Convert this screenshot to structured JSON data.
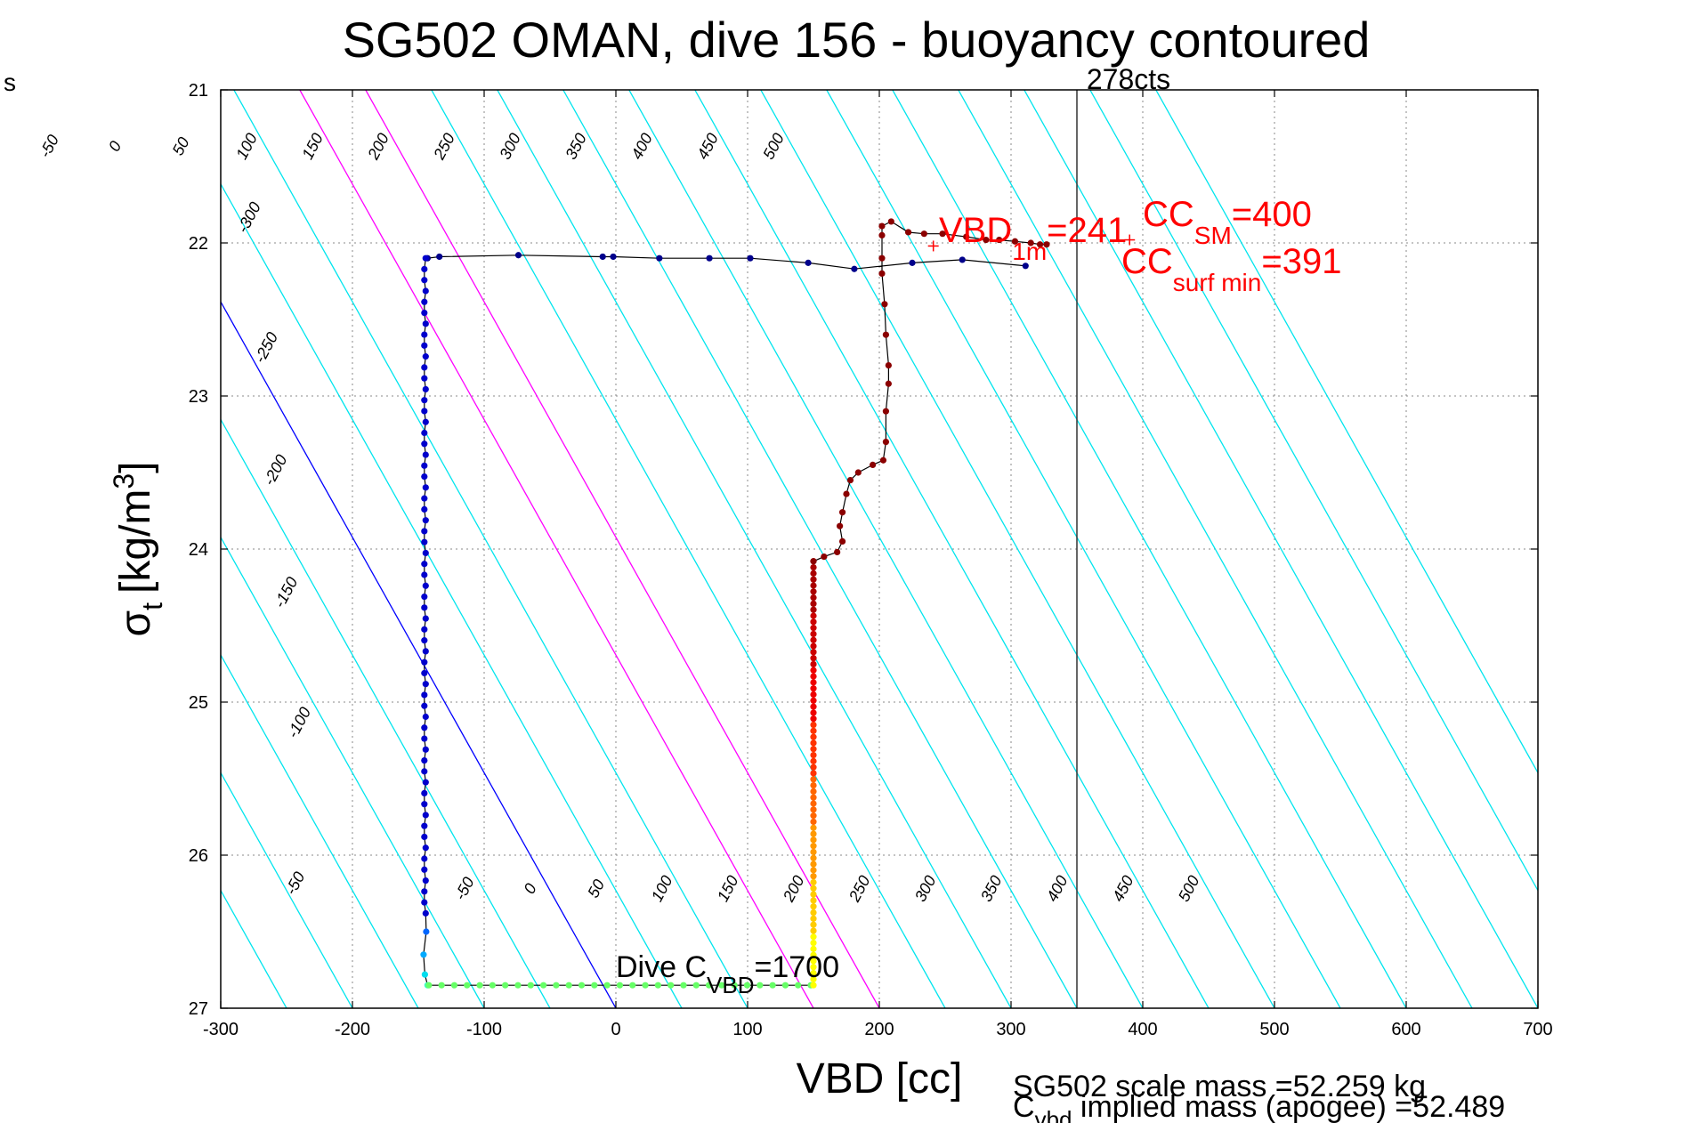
{
  "chart_data": {
    "type": "scatter",
    "title": "SG502 OMAN, dive 156 - buoyancy contoured",
    "xlabel": "VBD [cc]",
    "ylabel_main": "σ",
    "ylabel_sub": "t",
    "ylabel_unit": "[kg/m",
    "ylabel_sup": "3",
    "ylabel_close": "]",
    "left_edge_text": "s",
    "xlim": [
      -300,
      700
    ],
    "ylim": [
      21,
      27
    ],
    "y_reversed": true,
    "grid": true,
    "x_ticks": [
      -300,
      -200,
      -100,
      0,
      100,
      200,
      300,
      400,
      500,
      600,
      700
    ],
    "y_ticks": [
      21,
      22,
      23,
      24,
      25,
      26,
      27
    ],
    "contour_slope_cc_per_sigma": 65,
    "contour_values": [
      -300,
      -250,
      -200,
      -150,
      -100,
      -50,
      0,
      50,
      100,
      150,
      200,
      250,
      300,
      350,
      400,
      450,
      500,
      550,
      600,
      650,
      700,
      750,
      800
    ],
    "contour_colors": {
      "default": "#00e5ee",
      "zero": "#0000ff",
      "highlight": "#ff00ff"
    },
    "highlight_contours": [
      150,
      200
    ],
    "top_contour_labels": [
      {
        "v": -50,
        "label": "-50"
      },
      {
        "v": 0,
        "label": "0"
      },
      {
        "v": 50,
        "label": "50"
      },
      {
        "v": 100,
        "label": "100"
      },
      {
        "v": 150,
        "label": "150"
      },
      {
        "v": 200,
        "label": "200"
      },
      {
        "v": 250,
        "label": "250"
      },
      {
        "v": 300,
        "label": "300"
      },
      {
        "v": 350,
        "label": "350"
      },
      {
        "v": 400,
        "label": "400"
      },
      {
        "v": 450,
        "label": "450"
      },
      {
        "v": 500,
        "label": "500"
      }
    ],
    "left_contour_labels": [
      {
        "label": "-300",
        "vbd": -275,
        "sigma": 21.85
      },
      {
        "label": "-250",
        "vbd": -262,
        "sigma": 22.7
      },
      {
        "label": "-200",
        "vbd": -255,
        "sigma": 23.5
      },
      {
        "label": "-150",
        "vbd": -247,
        "sigma": 24.3
      },
      {
        "label": "-100",
        "vbd": -237,
        "sigma": 25.15
      },
      {
        "label": "-50",
        "vbd": -240,
        "sigma": 26.2
      }
    ],
    "bottom_contour_labels": [
      {
        "v": -50,
        "label": "-50"
      },
      {
        "v": 0,
        "label": "0"
      },
      {
        "v": 50,
        "label": "50"
      },
      {
        "v": 100,
        "label": "100"
      },
      {
        "v": 150,
        "label": "150"
      },
      {
        "v": 200,
        "label": "200"
      },
      {
        "v": 250,
        "label": "250"
      },
      {
        "v": 300,
        "label": "300"
      },
      {
        "v": 350,
        "label": "350"
      },
      {
        "v": 400,
        "label": "400"
      },
      {
        "v": 450,
        "label": "450"
      },
      {
        "v": 500,
        "label": "500"
      }
    ],
    "vertical_reference": {
      "x": 350,
      "label": "278cts"
    },
    "dive_trace": {
      "surface_descent": [
        [
          311,
          22.15
        ],
        [
          263,
          22.11
        ],
        [
          225,
          22.13
        ],
        [
          181,
          22.17
        ],
        [
          146,
          22.13
        ],
        [
          102,
          22.1
        ],
        [
          71,
          22.1
        ],
        [
          33,
          22.1
        ],
        [
          -2,
          22.09
        ],
        [
          -10,
          22.09
        ],
        [
          -74,
          22.08
        ],
        [
          -134,
          22.09
        ],
        [
          -143,
          22.1
        ]
      ],
      "descent_sigma_start": 22.1,
      "descent_sigma_end": 26.38,
      "descent_vbd": -145,
      "bottom_sigma": 26.85,
      "bottom_vbd_start": -142,
      "bottom_vbd_end": 148,
      "ascent_vbd": 150,
      "ascent_sigma_start": 26.85,
      "ascent_sigma_end": 24.08,
      "upper_ascent": [
        [
          150,
          24.08
        ],
        [
          158,
          24.05
        ],
        [
          168,
          24.02
        ],
        [
          172,
          23.95
        ],
        [
          170,
          23.85
        ],
        [
          172,
          23.76
        ],
        [
          175,
          23.64
        ],
        [
          178,
          23.55
        ],
        [
          184,
          23.5
        ],
        [
          195,
          23.45
        ],
        [
          203,
          23.42
        ],
        [
          205,
          23.3
        ],
        [
          205,
          23.1
        ],
        [
          207,
          22.92
        ],
        [
          207,
          22.8
        ],
        [
          205,
          22.6
        ],
        [
          204,
          22.4
        ],
        [
          202,
          22.2
        ],
        [
          202,
          22.1
        ],
        [
          202,
          21.95
        ],
        [
          202,
          21.89
        ],
        [
          209,
          21.86
        ],
        [
          222,
          21.93
        ],
        [
          234,
          21.94
        ],
        [
          248,
          21.94
        ],
        [
          266,
          21.96
        ],
        [
          281,
          21.98
        ],
        [
          291,
          21.98
        ],
        [
          303,
          21.99
        ],
        [
          315,
          22.0
        ],
        [
          322,
          22.01
        ],
        [
          327,
          22.01
        ]
      ]
    },
    "markers": [
      {
        "vbd": 241,
        "sigma": 22.02
      },
      {
        "vbd": 390,
        "sigma": 21.98
      }
    ],
    "annotations": {
      "vbd1m_main": "VBD",
      "vbd1m_sub": "1m",
      "vbd1m_val": "=241",
      "ccsm_main": "CC",
      "ccsm_sub": "SM",
      "ccsm_val": "=400",
      "ccsurf_main": "CC",
      "ccsurf_sub": "surf min",
      "ccsurf_val": "=391",
      "dive_main": "Dive C",
      "dive_sub": "VBD",
      "dive_val": "=1700",
      "scale_mass": "SG502 scale mass =52.259 kg",
      "cvbd_main": "C",
      "cvbd_sub": "vbd",
      "cvbd_rest": " implied mass (apogee) =52.489"
    },
    "colors": {
      "annotation": "#ff0000",
      "descent": "#0000cc",
      "surface": "#00008b",
      "ascent_upper": "#8b0000",
      "bottom": "#66ff66"
    }
  }
}
